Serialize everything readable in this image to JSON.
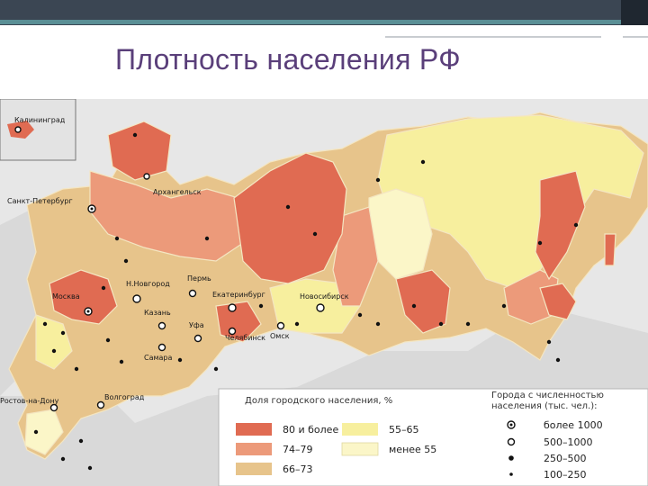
{
  "title": "Плотность населения РФ",
  "colors": {
    "sea": "#e7e7e7",
    "outside": "#d9d9d9",
    "cat_80_plus": "#e06b52",
    "cat_74_79": "#ec9a7a",
    "cat_66_73": "#e7c48b",
    "cat_55_65": "#f7ef9e",
    "cat_under_55": "#fbf6c8"
  },
  "cities": {
    "kaliningrad": "Калининград",
    "st_petersburg": "Санкт-Петербург",
    "arkhangelsk": "Архангельск",
    "moscow": "Москва",
    "n_novgorod": "Н.Новгород",
    "perm": "Пермь",
    "kazan": "Казань",
    "ekaterinburg": "Екатеринбург",
    "ufa": "Уфа",
    "chelyabinsk": "Челябинск",
    "samara": "Самара",
    "novosibirsk": "Новосибирск",
    "omsk": "Омск",
    "volgograd": "Волгоград",
    "rostov": "Ростов-на-Дону"
  },
  "legend": {
    "share_heading": "Доля городского населения, %",
    "categories": [
      "80 и более",
      "74–79",
      "66–73",
      "55–65",
      "менее 55"
    ],
    "cities_heading_line1": "Города с численностью",
    "cities_heading_line2": "населения (тыс. чел.):",
    "city_sizes": [
      "более 1000",
      "500–1000",
      "250–500",
      "100–250"
    ]
  }
}
